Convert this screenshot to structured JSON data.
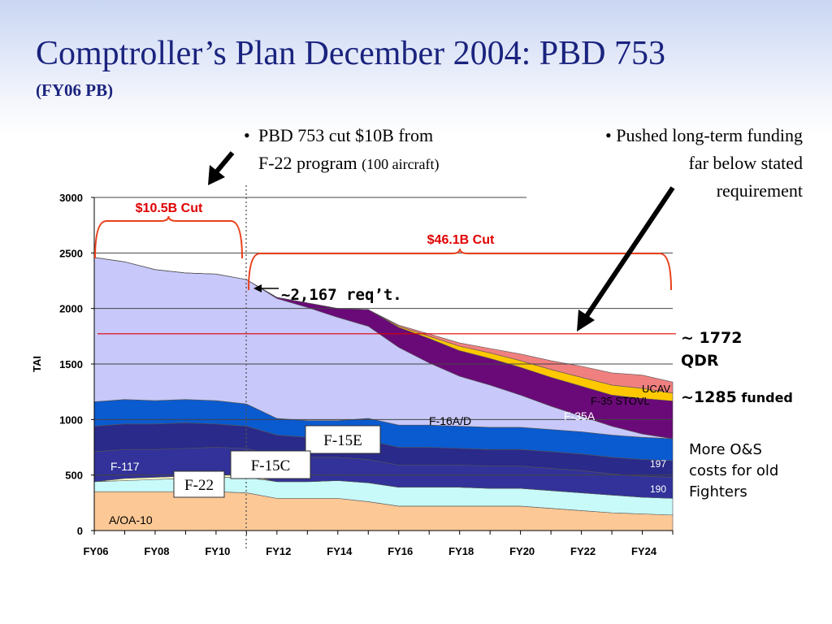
{
  "title": "Comptroller’s Plan December 2004: PBD 753",
  "subtitle": "(FY06 PB)",
  "bullets": [
    {
      "text_a": "PBD 753 cut $10B from",
      "text_b": "F-22 program ",
      "text_small": "(100 aircraft)"
    },
    {
      "text_a": "Pushed long-term funding",
      "text_b": "far below stated",
      "text_c": "requirement"
    }
  ],
  "notes": {
    "qdr_a": "~ 1772",
    "qdr_b": "QDR",
    "funded_num": "~1285",
    "funded_word": " funded",
    "om_a": "More O&S",
    "om_b": "costs for old",
    "om_c": "Fighters"
  },
  "annotations": {
    "cut1": "$10.5B Cut",
    "cut2": "$46.1B Cut",
    "req": "~2,167 req’t.",
    "v197": "197",
    "v190": "190",
    "box_f15e": "F-15E",
    "box_f15c": "F-15C",
    "box_f22": "F-22"
  },
  "colors": {
    "cut_brace": "#e8401c",
    "qdr_line": "#e00000",
    "title": "#1a237e"
  },
  "chart_data": {
    "type": "area",
    "stacked": true,
    "ylabel": "TAI",
    "ylim": [
      0,
      3000
    ],
    "yticks": [
      0,
      500,
      1000,
      1500,
      2000,
      2500,
      3000
    ],
    "x": [
      "FY06",
      "FY07",
      "FY08",
      "FY09",
      "FY10",
      "FY11",
      "FY12",
      "FY13",
      "FY14",
      "FY15",
      "FY16",
      "FY17",
      "FY18",
      "FY19",
      "FY20",
      "FY21",
      "FY22",
      "FY23",
      "FY24",
      "FY25"
    ],
    "xtick_labels": [
      "FY06",
      "FY08",
      "FY10",
      "FY12",
      "FY14",
      "FY16",
      "FY18",
      "FY20",
      "FY22",
      "FY24"
    ],
    "grid": true,
    "reference_lines": [
      {
        "label": "~ 1772 QDR",
        "value": 1772
      }
    ],
    "series": [
      {
        "name": "A/OA-10",
        "color": "#fcc896",
        "values": [
          350,
          350,
          350,
          350,
          350,
          340,
          290,
          290,
          290,
          260,
          220,
          220,
          220,
          220,
          220,
          200,
          180,
          160,
          150,
          140
        ]
      },
      {
        "name": "",
        "color": "#c8fafa",
        "values": [
          90,
          100,
          110,
          120,
          130,
          140,
          150,
          150,
          160,
          170,
          170,
          170,
          170,
          160,
          160,
          160,
          160,
          160,
          150,
          150
        ]
      },
      {
        "name": "F-22",
        "color": "#ffffc8",
        "values": [
          0,
          20,
          20,
          20,
          20,
          20,
          0,
          0,
          0,
          0,
          0,
          0,
          0,
          0,
          0,
          0,
          0,
          0,
          0,
          0
        ]
      },
      {
        "name": "F-15C",
        "color": "#32329a",
        "values": [
          270,
          260,
          250,
          250,
          250,
          240,
          230,
          220,
          210,
          210,
          200,
          200,
          200,
          200,
          200,
          200,
          200,
          190,
          190,
          190
        ]
      },
      {
        "name": "F-117",
        "color": "#2a2a8a",
        "values": [
          230,
          230,
          230,
          230,
          210,
          200,
          190,
          180,
          180,
          170,
          160,
          160,
          150,
          150,
          150,
          150,
          150,
          150,
          150,
          150
        ]
      },
      {
        "name": "F-15E",
        "color": "#0a5ad0",
        "values": [
          220,
          220,
          210,
          210,
          210,
          200,
          150,
          150,
          150,
          200,
          200,
          200,
          200,
          200,
          200,
          200,
          200,
          200,
          200,
          197
        ]
      },
      {
        "name": "F-16A/D",
        "color": "#c8c8fa",
        "values": [
          1300,
          1240,
          1180,
          1140,
          1140,
          1120,
          1080,
          1020,
          930,
          830,
          700,
          560,
          450,
          380,
          290,
          210,
          140,
          80,
          30,
          0
        ]
      },
      {
        "name": "F-35A",
        "color": "#6a0a78",
        "values": [
          0,
          0,
          0,
          0,
          0,
          0,
          10,
          40,
          80,
          150,
          180,
          220,
          230,
          240,
          250,
          260,
          270,
          280,
          320,
          340
        ]
      },
      {
        "name": "F-35 STOVL",
        "color": "#ffc800",
        "values": [
          0,
          0,
          0,
          0,
          0,
          0,
          0,
          0,
          0,
          0,
          10,
          20,
          40,
          50,
          60,
          70,
          80,
          90,
          90,
          70
        ]
      },
      {
        "name": "UCAV",
        "color": "#f08080",
        "values": [
          0,
          0,
          0,
          0,
          0,
          0,
          0,
          0,
          0,
          0,
          10,
          20,
          30,
          40,
          60,
          80,
          100,
          110,
          120,
          100
        ]
      }
    ]
  }
}
